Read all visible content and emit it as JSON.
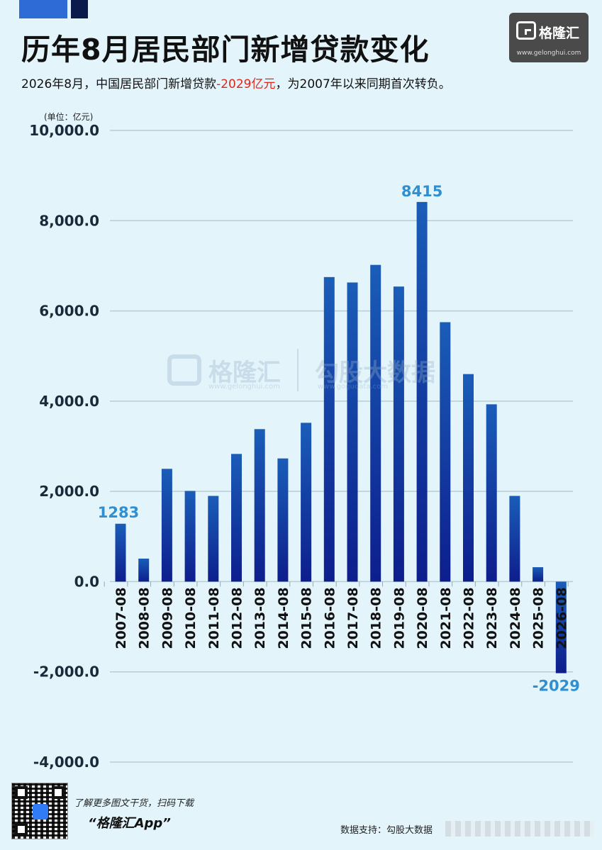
{
  "header": {
    "title": "历年8月居民部门新增贷款变化",
    "subtitle_prefix": "2026年8月，中国居民部门新增贷款",
    "subtitle_highlight": "-2029亿元",
    "subtitle_suffix": "，为2007年以来同期首次转负。",
    "unit_label": "(单位：亿元)"
  },
  "logo": {
    "brand": "格隆汇",
    "url": "www.gelonghui.com"
  },
  "watermark": {
    "brand": "格隆汇",
    "url": "www.gelonghui.com",
    "brand2": "勾股大数据",
    "url2": "www.gogudata.com"
  },
  "footer": {
    "qr_text": "了解更多图文干货，扫码下载",
    "app_name": "“格隆汇App”",
    "source": "数据支持：勾股大数据"
  },
  "colors": {
    "bar_top": "#1a5db8",
    "bar_bottom": "#0d1e8c",
    "label": "#2f8fd0",
    "negative_text": "#e0271b",
    "background": "#e3f4fb"
  },
  "chart_data": {
    "type": "bar",
    "categories": [
      "2007-08",
      "2008-08",
      "2009-08",
      "2010-08",
      "2011-08",
      "2012-08",
      "2013-08",
      "2014-08",
      "2015-08",
      "2016-08",
      "2017-08",
      "2018-08",
      "2019-08",
      "2020-08",
      "2021-08",
      "2022-08",
      "2023-08",
      "2024-08",
      "2025-08",
      "2026-08"
    ],
    "values": [
      1283,
      510,
      2500,
      2010,
      1900,
      2830,
      3380,
      2730,
      3520,
      6750,
      6630,
      7020,
      6540,
      8415,
      5750,
      4600,
      3930,
      1900,
      320,
      -2029
    ],
    "data_labels": [
      {
        "index": 0,
        "text": "1283"
      },
      {
        "index": 13,
        "text": "8415"
      },
      {
        "index": 19,
        "text": "-2029"
      }
    ],
    "y_ticks": [
      "10,000.0",
      "8,000.0",
      "6,000.0",
      "4,000.0",
      "2,000.0",
      "0.0",
      "-2,000.0",
      "-4,000.0"
    ],
    "ylim": [
      -4000,
      10000
    ],
    "grid": true,
    "title": "历年8月居民部门新增贷款变化"
  }
}
